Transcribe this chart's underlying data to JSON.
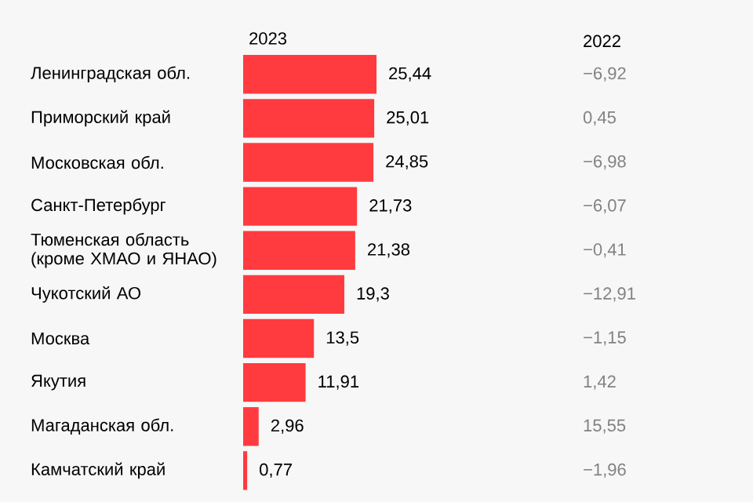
{
  "chart_data": [
    {
      "type": "bar",
      "orientation": "horizontal",
      "tick_labels": "y",
      "categories": [
        "Ленинградская обл.",
        "Приморский край",
        "Московская обл.",
        "Санкт-Петербург",
        "Тюменская область (кроме ХМАО и ЯНАО)",
        "Чукотский АО",
        "Москва",
        "Якутия",
        "Магаданская обл.",
        "Камчатский край"
      ],
      "series": [
        {
          "name": "2023",
          "color": "#ff3b3f",
          "values": [
            25.44,
            25.01,
            24.85,
            21.73,
            21.38,
            19.3,
            13.5,
            11.91,
            2.96,
            0.77
          ],
          "value_labels": [
            "25,44",
            "25,01",
            "24,85",
            "21,73",
            "21,38",
            "19,3",
            "13,5",
            "11,91",
            "2,96",
            "0,77"
          ]
        }
      ]
    },
    {
      "type": "other",
      "title": "2022",
      "annotations": [
        "−6,92",
        "0,45",
        "−6,98",
        "−6,07",
        "−0,41",
        "−12,91",
        "−1,15",
        "1,42",
        "15,55",
        "−1,96"
      ]
    }
  ]
}
